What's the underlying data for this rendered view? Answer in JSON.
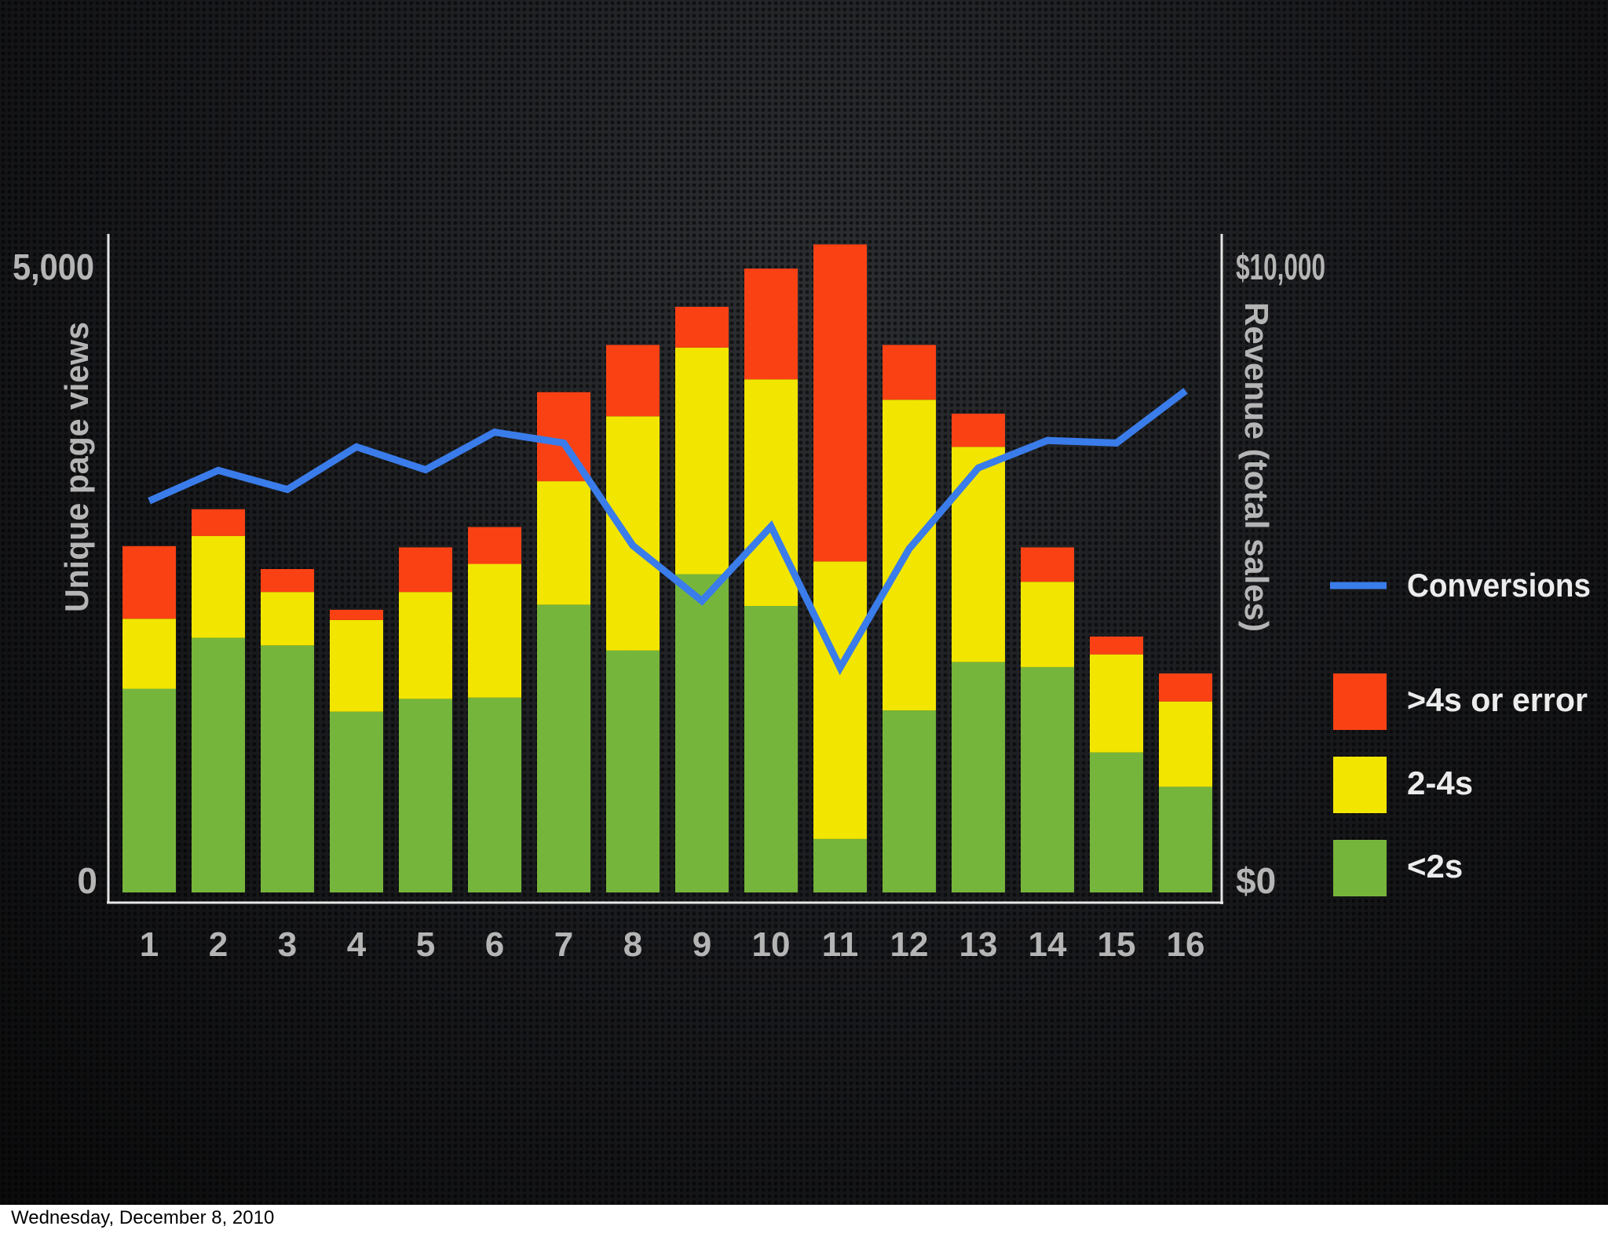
{
  "footer_text": "Wednesday, December 8, 2010",
  "colors": {
    "fast": "#76b53b",
    "medium": "#f2e500",
    "slow": "#fa4114",
    "line": "#3a7cea",
    "axis": "#e6e6e6",
    "text": "#b5b5b5"
  },
  "chart_data": {
    "type": "bar",
    "stacked": true,
    "title": "",
    "xlabel": "",
    "ylabel": "Unique page views",
    "y2label": "Revenue (total sales)",
    "ylim": [
      0,
      5000
    ],
    "y2lim": [
      0,
      10000
    ],
    "yticks": [
      "5,000",
      "0"
    ],
    "y2ticks": [
      "$10,000",
      "$0"
    ],
    "categories": [
      "1",
      "2",
      "3",
      "4",
      "5",
      "6",
      "7",
      "8",
      "9",
      "10",
      "11",
      "12",
      "13",
      "14",
      "15",
      "16"
    ],
    "series": [
      {
        "name": "<2s",
        "values": [
          1600,
          2000,
          1940,
          1420,
          1520,
          1530,
          2260,
          1900,
          2500,
          2250,
          420,
          1430,
          1810,
          1770,
          1100,
          830
        ]
      },
      {
        "name": "2-4s",
        "values": [
          550,
          800,
          420,
          720,
          840,
          1050,
          970,
          1840,
          1780,
          1780,
          2180,
          2440,
          1690,
          670,
          770,
          670
        ]
      },
      {
        "name": ">4s or error",
        "values": [
          570,
          210,
          180,
          80,
          350,
          290,
          700,
          560,
          320,
          870,
          2490,
          430,
          260,
          270,
          140,
          220
        ]
      }
    ],
    "line_series": {
      "name": "Conversions",
      "axis": "right",
      "values": [
        6150,
        6630,
        6330,
        7000,
        6640,
        7230,
        7060,
        5450,
        4580,
        5750,
        3530,
        5400,
        6670,
        7100,
        7060,
        7880
      ]
    },
    "legend": {
      "placement": "right",
      "items": [
        {
          "label": "Conversions",
          "kind": "line"
        },
        {
          "label": ">4s or error",
          "kind": "bar"
        },
        {
          "label": "2-4s",
          "kind": "bar"
        },
        {
          "label": "<2s",
          "kind": "bar"
        }
      ]
    },
    "grid": false
  }
}
